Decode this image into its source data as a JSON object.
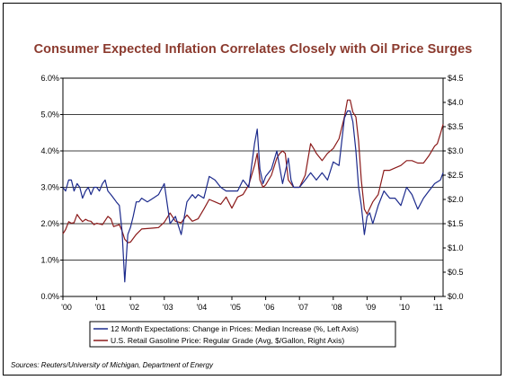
{
  "chart_data": {
    "type": "line",
    "title": "Consumer Expected Inflation Correlates Closely with Oil Price Surges",
    "source": "Sources: Reuters/University of Michigan, Department of Energy",
    "x_tick_labels": [
      "'00",
      "'01",
      "'02",
      "'03",
      "'04",
      "'05",
      "'06",
      "'07",
      "'08",
      "'09",
      "'10",
      "'11"
    ],
    "x_tick_years": [
      2000,
      2001,
      2002,
      2003,
      2004,
      2005,
      2006,
      2007,
      2008,
      2009,
      2010,
      2011
    ],
    "xlim": [
      2000.0,
      2011.25
    ],
    "y_left": {
      "ticks": [
        0,
        1,
        2,
        3,
        4,
        5,
        6
      ],
      "tick_labels": [
        "0.0%",
        "1.0%",
        "2.0%",
        "3.0%",
        "4.0%",
        "5.0%",
        "6.0%"
      ],
      "ylim": [
        0,
        6
      ]
    },
    "y_right": {
      "ticks": [
        0,
        0.5,
        1,
        1.5,
        2,
        2.5,
        3,
        3.5,
        4,
        4.5
      ],
      "tick_labels": [
        "$0.0",
        "$0.5",
        "$1.0",
        "$1.5",
        "$2.0",
        "$2.5",
        "$3.0",
        "$3.5",
        "$4.0",
        "$4.5"
      ],
      "ylim": [
        0,
        4.5
      ]
    },
    "grid": {
      "horizontal": true,
      "vertical": false
    },
    "legend_position": "bottom",
    "series": [
      {
        "name": "12 Month Expectations: Change in Prices: Median Increase (%, Left Axis)",
        "axis": "left",
        "color": "#1c2a8c",
        "x": [
          2000.0,
          2000.08,
          2000.17,
          2000.25,
          2000.33,
          2000.42,
          2000.5,
          2000.58,
          2000.67,
          2000.75,
          2000.83,
          2000.92,
          2001.0,
          2001.08,
          2001.17,
          2001.25,
          2001.33,
          2001.42,
          2001.5,
          2001.58,
          2001.67,
          2001.75,
          2001.83,
          2001.92,
          2002.0,
          2002.08,
          2002.17,
          2002.25,
          2002.33,
          2002.5,
          2002.67,
          2002.83,
          2003.0,
          2003.17,
          2003.33,
          2003.5,
          2003.67,
          2003.83,
          2003.92,
          2004.0,
          2004.17,
          2004.33,
          2004.5,
          2004.67,
          2004.83,
          2005.0,
          2005.17,
          2005.33,
          2005.5,
          2005.67,
          2005.75,
          2005.83,
          2005.92,
          2006.0,
          2006.17,
          2006.33,
          2006.5,
          2006.67,
          2006.75,
          2006.83,
          2007.0,
          2007.17,
          2007.33,
          2007.5,
          2007.67,
          2007.83,
          2008.0,
          2008.17,
          2008.33,
          2008.42,
          2008.5,
          2008.58,
          2008.67,
          2008.75,
          2008.83,
          2008.92,
          2009.0,
          2009.08,
          2009.17,
          2009.33,
          2009.5,
          2009.67,
          2009.83,
          2010.0,
          2010.17,
          2010.33,
          2010.5,
          2010.67,
          2010.83,
          2011.0,
          2011.17,
          2011.25
        ],
        "values": [
          3.0,
          2.9,
          3.2,
          3.2,
          2.9,
          3.1,
          3.0,
          2.7,
          2.9,
          3.0,
          2.8,
          3.0,
          3.0,
          2.9,
          3.1,
          3.2,
          2.9,
          2.8,
          2.7,
          2.6,
          2.5,
          1.8,
          0.4,
          1.7,
          1.9,
          2.2,
          2.6,
          2.6,
          2.7,
          2.6,
          2.7,
          2.8,
          3.1,
          2.0,
          2.2,
          1.7,
          2.6,
          2.8,
          2.7,
          2.8,
          2.7,
          3.3,
          3.2,
          3.0,
          2.9,
          2.9,
          2.9,
          3.2,
          3.0,
          4.2,
          4.6,
          3.5,
          3.1,
          3.3,
          3.5,
          4.0,
          3.1,
          3.8,
          3.2,
          3.0,
          3.0,
          3.2,
          3.4,
          3.2,
          3.4,
          3.2,
          3.7,
          3.6,
          4.9,
          5.1,
          5.1,
          4.8,
          4.0,
          3.0,
          2.5,
          1.7,
          2.2,
          2.3,
          2.0,
          2.5,
          2.9,
          2.7,
          2.7,
          2.5,
          3.0,
          2.8,
          2.4,
          2.7,
          2.9,
          3.1,
          3.2,
          3.4
        ]
      },
      {
        "name": "U.S. Retail Gasoline Price: Regular Grade (Avg, $/Gallon, Right Axis)",
        "axis": "right",
        "color": "#8b1a1a",
        "x": [
          2000.0,
          2000.08,
          2000.17,
          2000.25,
          2000.33,
          2000.42,
          2000.5,
          2000.58,
          2000.67,
          2000.75,
          2000.83,
          2000.92,
          2001.0,
          2001.17,
          2001.33,
          2001.42,
          2001.5,
          2001.67,
          2001.75,
          2001.83,
          2001.92,
          2002.0,
          2002.17,
          2002.33,
          2002.5,
          2002.67,
          2002.83,
          2003.0,
          2003.17,
          2003.33,
          2003.5,
          2003.67,
          2003.83,
          2004.0,
          2004.17,
          2004.33,
          2004.5,
          2004.67,
          2004.83,
          2005.0,
          2005.17,
          2005.33,
          2005.5,
          2005.67,
          2005.75,
          2005.83,
          2005.92,
          2006.0,
          2006.17,
          2006.33,
          2006.42,
          2006.5,
          2006.58,
          2006.67,
          2006.83,
          2007.0,
          2007.17,
          2007.33,
          2007.42,
          2007.5,
          2007.67,
          2007.83,
          2008.0,
          2008.17,
          2008.33,
          2008.42,
          2008.5,
          2008.58,
          2008.67,
          2008.75,
          2008.83,
          2008.92,
          2009.0,
          2009.17,
          2009.33,
          2009.5,
          2009.67,
          2009.83,
          2010.0,
          2010.17,
          2010.33,
          2010.5,
          2010.67,
          2010.83,
          2011.0,
          2011.08,
          2011.17,
          2011.25
        ],
        "values": [
          1.29,
          1.38,
          1.54,
          1.51,
          1.52,
          1.69,
          1.61,
          1.54,
          1.59,
          1.56,
          1.55,
          1.48,
          1.51,
          1.48,
          1.65,
          1.6,
          1.44,
          1.48,
          1.35,
          1.18,
          1.11,
          1.12,
          1.28,
          1.39,
          1.4,
          1.41,
          1.42,
          1.53,
          1.72,
          1.55,
          1.52,
          1.68,
          1.55,
          1.6,
          1.8,
          2.0,
          1.95,
          1.9,
          2.05,
          1.82,
          2.05,
          2.1,
          2.3,
          2.7,
          2.95,
          2.4,
          2.25,
          2.3,
          2.5,
          2.85,
          2.95,
          3.0,
          2.95,
          2.4,
          2.25,
          2.25,
          2.5,
          3.15,
          3.05,
          2.95,
          2.8,
          2.95,
          3.05,
          3.25,
          3.7,
          4.05,
          4.05,
          3.8,
          3.7,
          3.2,
          2.4,
          1.8,
          1.7,
          1.95,
          2.1,
          2.6,
          2.6,
          2.65,
          2.7,
          2.8,
          2.8,
          2.75,
          2.75,
          2.9,
          3.1,
          3.15,
          3.35,
          3.55
        ]
      }
    ]
  }
}
